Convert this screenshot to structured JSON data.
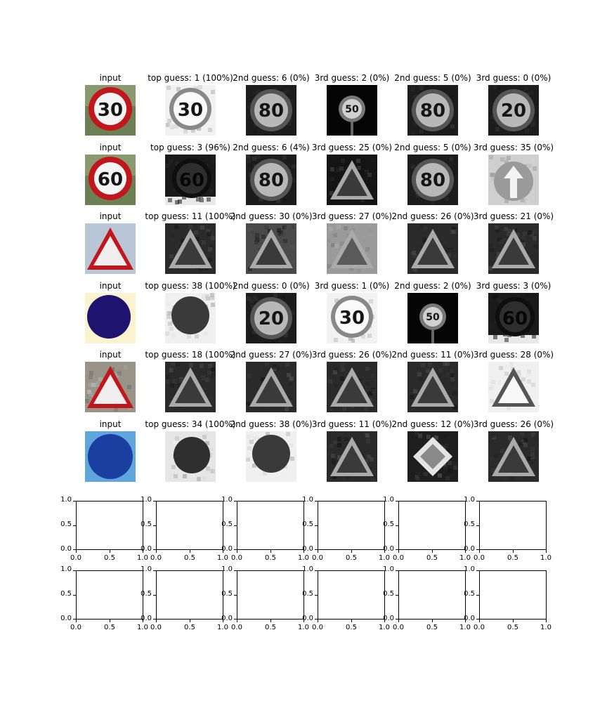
{
  "chart_data": {
    "type": "table",
    "columns": [
      "input",
      "top guess",
      "2nd guess",
      "3rd guess",
      "2nd guess",
      "3rd guess"
    ],
    "rows": [
      {
        "input_label": "input",
        "input_sign": "30",
        "titles": [
          "input",
          "top guess: 1 (100%)",
          "2nd guess: 6 (0%)",
          "3rd guess: 2 (0%)",
          "2nd guess: 5 (0%)",
          "3rd guess: 0 (0%)"
        ],
        "signs": [
          "30",
          "30",
          "80",
          "50",
          "80",
          "20"
        ]
      },
      {
        "input_label": "input",
        "input_sign": "60",
        "titles": [
          "input",
          "top guess: 3 (96%)",
          "2nd guess: 6 (4%)",
          "3rd guess: 25 (0%)",
          "2nd guess: 5 (0%)",
          "3rd guess: 35 (0%)"
        ],
        "signs": [
          "60",
          "60",
          "80",
          "",
          "80",
          ""
        ]
      },
      {
        "input_label": "input",
        "input_sign": "",
        "titles": [
          "input",
          "top guess: 11 (100%)",
          "2nd guess: 30 (0%)",
          "3rd guess: 27 (0%)",
          "2nd guess: 26 (0%)",
          "3rd guess: 21 (0%)"
        ],
        "signs": [
          "",
          "",
          "",
          "",
          "",
          ""
        ]
      },
      {
        "input_label": "input",
        "input_sign": "",
        "titles": [
          "input",
          "top guess: 38 (100%)",
          "2nd guess: 0 (0%)",
          "3rd guess: 1 (0%)",
          "2nd guess: 2 (0%)",
          "3rd guess: 3 (0%)"
        ],
        "signs": [
          "",
          "",
          "20",
          "30",
          "50",
          "60"
        ]
      },
      {
        "input_label": "input",
        "input_sign": "",
        "titles": [
          "input",
          "top guess: 18 (100%)",
          "2nd guess: 27 (0%)",
          "3rd guess: 26 (0%)",
          "2nd guess: 11 (0%)",
          "3rd guess: 28 (0%)"
        ],
        "signs": [
          "",
          "",
          "",
          "",
          "",
          ""
        ]
      },
      {
        "input_label": "input",
        "input_sign": "",
        "titles": [
          "input",
          "top guess: 34 (100%)",
          "2nd guess: 38 (0%)",
          "3rd guess: 11 (0%)",
          "2nd guess: 12 (0%)",
          "3rd guess: 26 (0%)"
        ],
        "signs": [
          "",
          "",
          "",
          "",
          "",
          ""
        ]
      }
    ],
    "empty_axes": {
      "xlim": [
        0.0,
        1.0
      ],
      "ylim": [
        0.0,
        1.0
      ],
      "xticks": [
        "0.0",
        "0.5",
        "1.0"
      ],
      "yticks": [
        "0.0",
        "0.5",
        "1.0"
      ],
      "rows": 2,
      "cols": 6
    }
  },
  "colors": {
    "red_sign": "#c0161c",
    "blue_sign": "#1a3fa0",
    "dark_blue_sign": "#1e1470",
    "photo_bg": "#8ab0c8",
    "gray_dark": "#2a2a2a",
    "gray_light": "#d8d8d8"
  }
}
